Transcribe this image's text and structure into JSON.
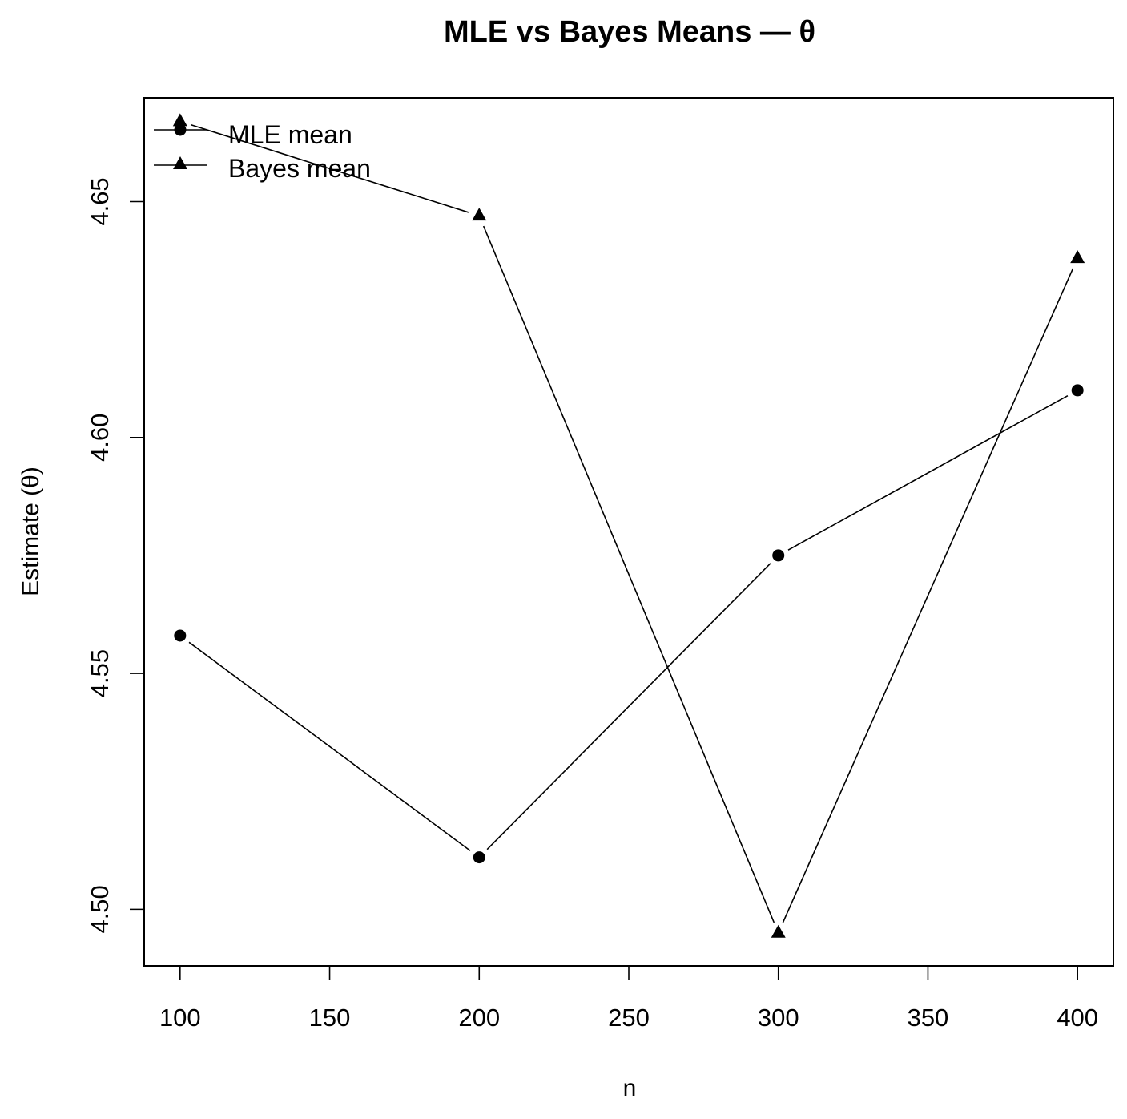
{
  "chart_data": {
    "type": "line",
    "title": "MLE vs Bayes Means — θ",
    "xlabel": "n",
    "ylabel": "Estimate (θ)",
    "x": [
      100,
      200,
      300,
      400
    ],
    "xlim": [
      88,
      412
    ],
    "ylim": [
      4.488,
      4.672
    ],
    "x_ticks": [
      "100",
      "150",
      "200",
      "250",
      "300",
      "350",
      "400"
    ],
    "y_ticks": [
      "4.50",
      "4.55",
      "4.60",
      "4.65"
    ],
    "grid": false,
    "legend_position": "top-left",
    "series": [
      {
        "name": "MLE mean",
        "marker": "circle",
        "values": [
          4.558,
          4.511,
          4.575,
          4.61
        ]
      },
      {
        "name": "Bayes mean",
        "marker": "triangle",
        "values": [
          4.667,
          4.647,
          4.495,
          4.638
        ]
      }
    ]
  }
}
